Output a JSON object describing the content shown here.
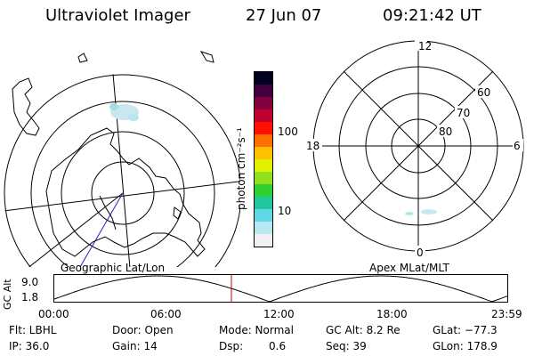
{
  "header": {
    "title": "Ultraviolet Imager",
    "date": "27 Jun 07",
    "time": "09:21:42 UT"
  },
  "colorbar": {
    "unit_label": "photon cm⁻²s⁻¹",
    "tick_100": "100",
    "tick_10": "10",
    "colors": [
      "#f0f0f0",
      "#b8e8f0",
      "#60d8e8",
      "#20c8a0",
      "#30d030",
      "#90e020",
      "#e0f000",
      "#ffc000",
      "#ff7000",
      "#ff1000",
      "#c00030",
      "#800040",
      "#400040",
      "#000020"
    ]
  },
  "geo_panel": {
    "caption": "Geographic Lat/Lon"
  },
  "apex_panel": {
    "caption": "Apex MLat/MLT",
    "mlt_12": "12",
    "mlt_18": "18",
    "mlt_6": "6",
    "mlt_0": "0",
    "lat_60": "60",
    "lat_70": "70",
    "lat_80": "80"
  },
  "orbit_plot": {
    "ylabel": "GC Alt",
    "y_max": "9.0",
    "y_min": "1.8",
    "x_ticks": [
      "00:00",
      "06:00",
      "12:00",
      "18:00",
      "23:59"
    ],
    "current_time_marker_color": "#cc0000"
  },
  "status": {
    "row1": {
      "filter": "Flt: LBHL",
      "door": "Door: Open",
      "mode": "Mode: Normal",
      "gc_alt": "GC Alt: 8.2 Re",
      "glat": "GLat: −77.3"
    },
    "row2": {
      "ip": "IP: 36.0",
      "gain": "Gain: 14",
      "dsp": "Dsp:",
      "dsp_value": "0.6",
      "seq": "Seq: 39",
      "glon": "GLon: 178.9"
    }
  }
}
